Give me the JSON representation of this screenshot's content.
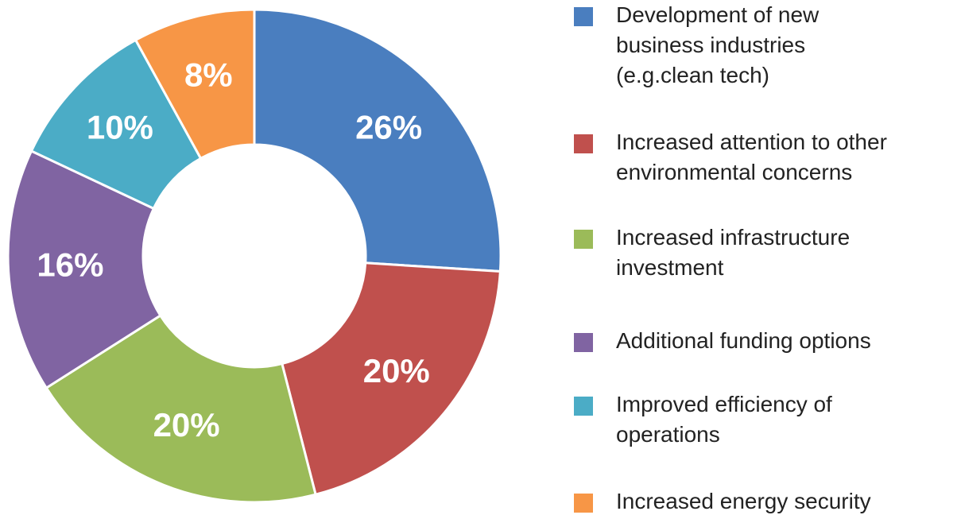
{
  "chart_data": {
    "type": "donut",
    "categories": [
      "Development of new\nbusiness industries\n(e.g.clean tech)",
      "Increased attention to other\nenvironmental concerns",
      "Increased infrastructure\ninvestment",
      "Additional funding options",
      "Improved efficiency of\noperations",
      "Increased energy security"
    ],
    "values": [
      26,
      20,
      20,
      16,
      10,
      8
    ],
    "value_labels": [
      "26%",
      "20%",
      "20%",
      "16%",
      "10%",
      "8%"
    ],
    "colors": [
      "#4a7ebf",
      "#c0504d",
      "#9bbb59",
      "#8064a2",
      "#4bacc6",
      "#f79646"
    ],
    "legend": "right"
  }
}
